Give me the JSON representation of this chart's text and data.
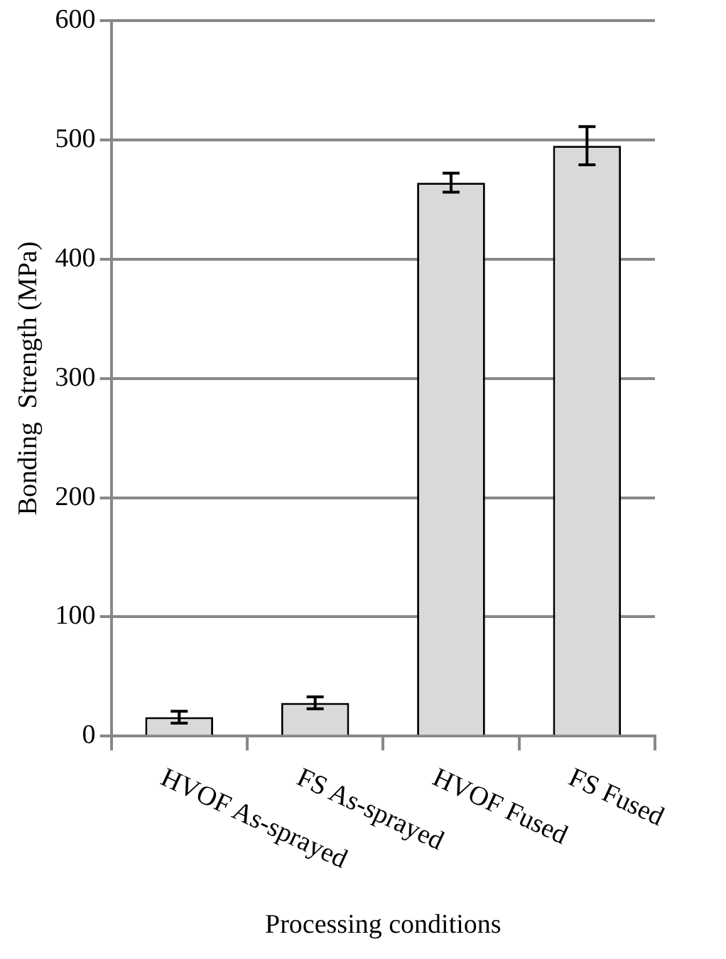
{
  "chart_data": {
    "type": "bar",
    "xlabel": "Processing conditions",
    "ylabel": "Bonding  Strength (MPa)",
    "categories": [
      "HVOF As-sprayed",
      "FS As-sprayed",
      "HVOF Fused",
      "FS Fused"
    ],
    "values": [
      16,
      28,
      464,
      495
    ],
    "errors": [
      5,
      5,
      8,
      16
    ],
    "color": "#d9d9d9",
    "ylim": [
      0,
      600
    ],
    "yticks": [
      0,
      100,
      200,
      300,
      400,
      500,
      600
    ],
    "grid": "y",
    "legend": false
  }
}
